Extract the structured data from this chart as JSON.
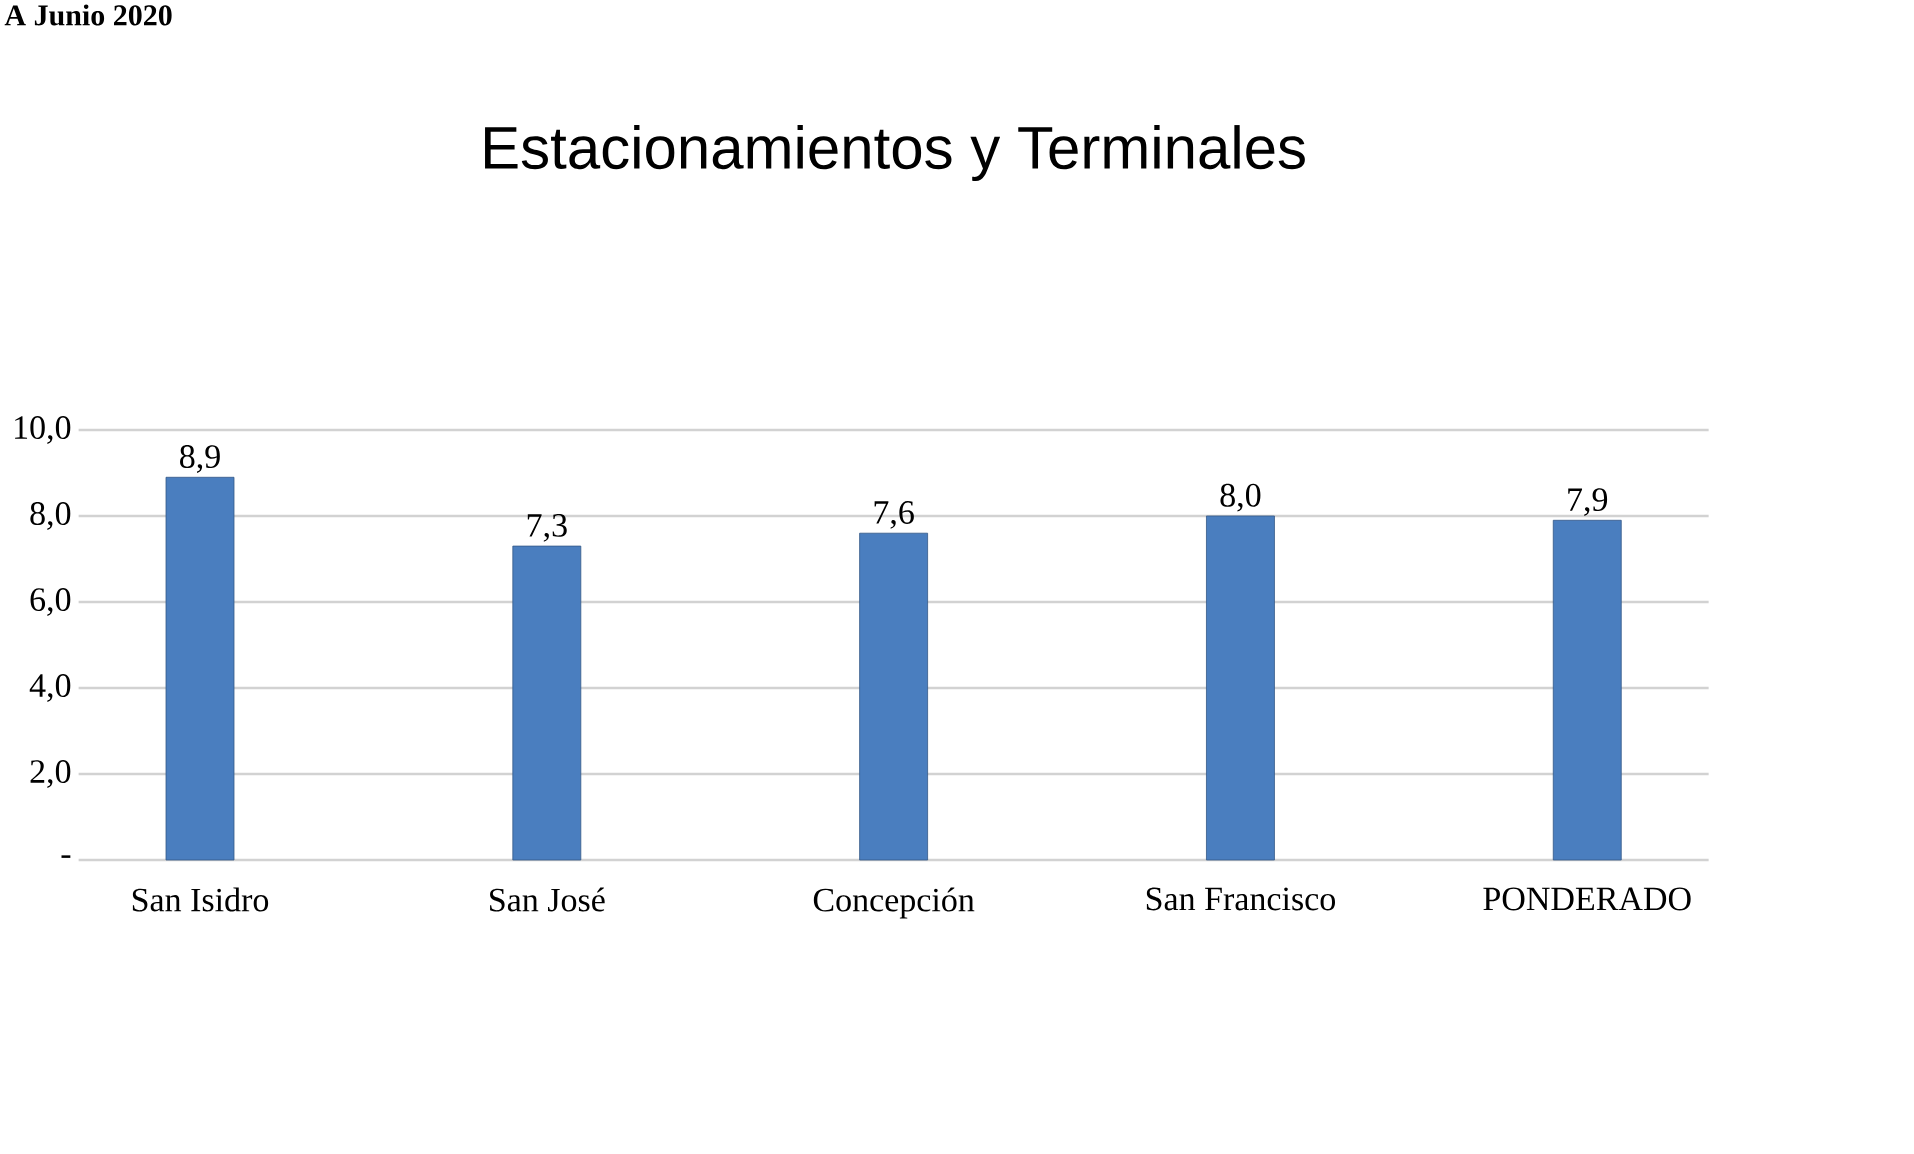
{
  "chart_data": {
    "type": "bar",
    "title": "Estacionamientos y Terminales",
    "annotations": [
      "A Junio 2020"
    ],
    "categories": [
      "San Isidro",
      "San José",
      "Concepción",
      "San Francisco",
      "PONDERADO"
    ],
    "values": [
      8.9,
      7.3,
      7.6,
      8.0,
      7.9
    ],
    "value_labels": [
      "8,9",
      "7,3",
      "7,6",
      "8,0",
      "7,9"
    ],
    "color": "#4a7ebf",
    "ylim": [
      0,
      10
    ],
    "yticks": [
      {
        "value": 0,
        "label": "-"
      },
      {
        "value": 2,
        "label": "2,0"
      },
      {
        "value": 4,
        "label": "4,0"
      },
      {
        "value": 6,
        "label": "6,0"
      },
      {
        "value": 8,
        "label": "8,0"
      },
      {
        "value": 10,
        "label": "10,0"
      }
    ],
    "grid": "y"
  }
}
